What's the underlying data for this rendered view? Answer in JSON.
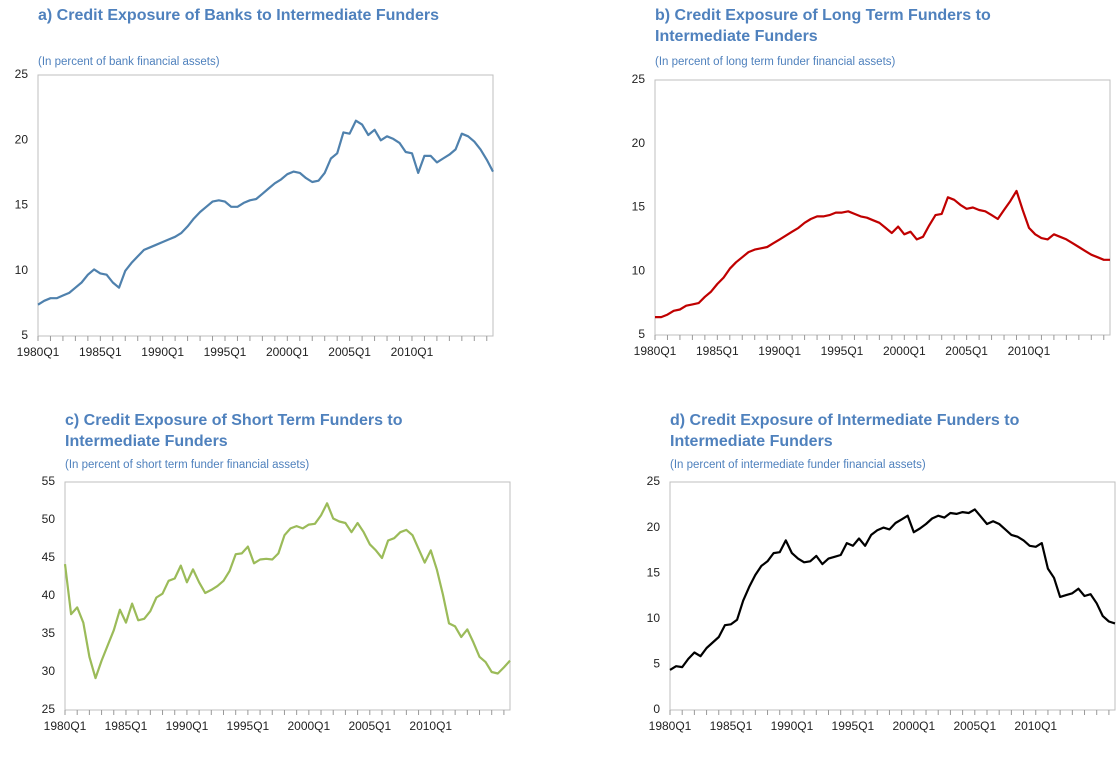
{
  "chart_data": [
    {
      "type": "line",
      "title": "a) Credit Exposure of Banks to Intermediate Funders",
      "subtitle": "(In percent of bank financial assets)",
      "color": "#4f81ad",
      "categories": [
        "1980Q1",
        null,
        null,
        null,
        null,
        null,
        null,
        null,
        null,
        null,
        "1985Q1",
        null,
        null,
        null,
        null,
        null,
        null,
        null,
        null,
        null,
        "1990Q1",
        null,
        null,
        null,
        null,
        null,
        null,
        null,
        null,
        null,
        "1995Q1",
        null,
        null,
        null,
        null,
        null,
        null,
        null,
        null,
        null,
        "2000Q1",
        null,
        null,
        null,
        null,
        null,
        null,
        null,
        null,
        null,
        "2005Q1",
        null,
        null,
        null,
        null,
        null,
        null,
        null,
        null,
        null,
        "2010Q1",
        null,
        null,
        null,
        null,
        null,
        null,
        null,
        null,
        null,
        null,
        null,
        null,
        null
      ],
      "values": [
        7.4,
        7.7,
        7.9,
        7.9,
        8.1,
        8.3,
        8.7,
        9.1,
        9.7,
        10.1,
        9.8,
        9.7,
        9.1,
        8.7,
        10.0,
        10.6,
        11.1,
        11.6,
        11.8,
        12.0,
        12.2,
        12.4,
        12.6,
        12.9,
        13.4,
        14.0,
        14.5,
        14.9,
        15.3,
        15.4,
        15.3,
        14.9,
        14.9,
        15.2,
        15.4,
        15.5,
        15.9,
        16.3,
        16.7,
        17.0,
        17.4,
        17.6,
        17.5,
        17.1,
        16.8,
        16.9,
        17.5,
        18.6,
        19.0,
        20.6,
        20.5,
        21.5,
        21.2,
        20.4,
        20.8,
        20.0,
        20.3,
        20.1,
        19.8,
        19.1,
        19.0,
        17.5,
        18.8,
        18.8,
        18.3,
        18.6,
        18.9,
        19.3,
        20.5,
        20.3,
        19.9,
        19.3,
        18.5,
        17.6
      ],
      "ylim": [
        5,
        25
      ],
      "yticks": [
        5,
        10,
        15,
        20,
        25
      ]
    },
    {
      "type": "line",
      "title": "b) Credit Exposure of Long Term Funders to Intermediate Funders",
      "subtitle": "(In percent of long term funder financial assets)",
      "color": "#c00000",
      "categories": [
        "1980Q1",
        null,
        null,
        null,
        null,
        null,
        null,
        null,
        null,
        null,
        "1985Q1",
        null,
        null,
        null,
        null,
        null,
        null,
        null,
        null,
        null,
        "1990Q1",
        null,
        null,
        null,
        null,
        null,
        null,
        null,
        null,
        null,
        "1995Q1",
        null,
        null,
        null,
        null,
        null,
        null,
        null,
        null,
        null,
        "2000Q1",
        null,
        null,
        null,
        null,
        null,
        null,
        null,
        null,
        null,
        "2005Q1",
        null,
        null,
        null,
        null,
        null,
        null,
        null,
        null,
        null,
        "2010Q1",
        null,
        null,
        null,
        null,
        null,
        null,
        null,
        null,
        null,
        null,
        null,
        null,
        null
      ],
      "values": [
        6.4,
        6.4,
        6.6,
        6.9,
        7.0,
        7.3,
        7.4,
        7.5,
        8.0,
        8.4,
        9.0,
        9.5,
        10.2,
        10.7,
        11.1,
        11.5,
        11.7,
        11.8,
        11.9,
        12.2,
        12.5,
        12.8,
        13.1,
        13.4,
        13.8,
        14.1,
        14.3,
        14.3,
        14.4,
        14.6,
        14.6,
        14.7,
        14.5,
        14.3,
        14.2,
        14.0,
        13.8,
        13.4,
        13.0,
        13.5,
        12.9,
        13.1,
        12.5,
        12.7,
        13.6,
        14.4,
        14.5,
        15.8,
        15.6,
        15.2,
        14.9,
        15.0,
        14.8,
        14.7,
        14.4,
        14.1,
        14.8,
        15.5,
        16.3,
        14.8,
        13.4,
        12.9,
        12.6,
        12.5,
        12.9,
        12.7,
        12.5,
        12.2,
        11.9,
        11.6,
        11.3,
        11.1,
        10.9,
        10.9
      ],
      "ylim": [
        5,
        25
      ],
      "yticks": [
        5,
        10,
        15,
        20,
        25
      ]
    },
    {
      "type": "line",
      "title": "c) Credit Exposure of Short Term Funders to Intermediate Funders",
      "subtitle": "(In percent of short term funder financial assets)",
      "color": "#9bbb59",
      "categories": [
        "1980Q1",
        null,
        null,
        null,
        null,
        null,
        null,
        null,
        null,
        null,
        "1985Q1",
        null,
        null,
        null,
        null,
        null,
        null,
        null,
        null,
        null,
        "1990Q1",
        null,
        null,
        null,
        null,
        null,
        null,
        null,
        null,
        null,
        "1995Q1",
        null,
        null,
        null,
        null,
        null,
        null,
        null,
        null,
        null,
        "2000Q1",
        null,
        null,
        null,
        null,
        null,
        null,
        null,
        null,
        null,
        "2005Q1",
        null,
        null,
        null,
        null,
        null,
        null,
        null,
        null,
        null,
        "2010Q1",
        null,
        null,
        null,
        null,
        null,
        null,
        null,
        null,
        null,
        null,
        null,
        null,
        null
      ],
      "values": [
        44.2,
        37.6,
        38.5,
        36.5,
        32.0,
        29.2,
        31.5,
        33.5,
        35.5,
        38.2,
        36.5,
        39.0,
        36.8,
        37.0,
        38.0,
        39.8,
        40.3,
        42.0,
        42.3,
        44.0,
        41.8,
        43.5,
        41.8,
        40.4,
        40.8,
        41.3,
        42.0,
        43.3,
        45.5,
        45.6,
        46.5,
        44.3,
        44.8,
        44.9,
        44.8,
        45.6,
        48.0,
        48.9,
        49.2,
        48.9,
        49.4,
        49.5,
        50.6,
        52.2,
        50.2,
        49.8,
        49.6,
        48.4,
        49.6,
        48.4,
        46.8,
        46.0,
        45.0,
        47.3,
        47.6,
        48.4,
        48.7,
        48.0,
        46.2,
        44.4,
        46.0,
        43.5,
        40.2,
        36.4,
        36.0,
        34.6,
        35.6,
        33.9,
        32.0,
        31.3,
        30.0,
        29.8,
        30.6,
        31.5
      ],
      "ylim": [
        25,
        55
      ],
      "yticks": [
        25,
        30,
        35,
        40,
        45,
        50,
        55
      ]
    },
    {
      "type": "line",
      "title": "d) Credit Exposure of Intermediate Funders to Intermediate Funders",
      "subtitle": "(In percent of intermediate funder financial assets)",
      "color": "#000000",
      "categories": [
        "1980Q1",
        null,
        null,
        null,
        null,
        null,
        null,
        null,
        null,
        null,
        "1985Q1",
        null,
        null,
        null,
        null,
        null,
        null,
        null,
        null,
        null,
        "1990Q1",
        null,
        null,
        null,
        null,
        null,
        null,
        null,
        null,
        null,
        "1995Q1",
        null,
        null,
        null,
        null,
        null,
        null,
        null,
        null,
        null,
        "2000Q1",
        null,
        null,
        null,
        null,
        null,
        null,
        null,
        null,
        null,
        "2005Q1",
        null,
        null,
        null,
        null,
        null,
        null,
        null,
        null,
        null,
        "2010Q1",
        null,
        null,
        null,
        null,
        null,
        null,
        null,
        null,
        null,
        null,
        null,
        null,
        null
      ],
      "values": [
        4.4,
        4.8,
        4.7,
        5.6,
        6.3,
        5.9,
        6.8,
        7.4,
        8.0,
        9.3,
        9.4,
        9.9,
        12.0,
        13.5,
        14.8,
        15.8,
        16.3,
        17.2,
        17.3,
        18.6,
        17.2,
        16.6,
        16.2,
        16.3,
        16.9,
        16.0,
        16.6,
        16.8,
        17.0,
        18.3,
        18.0,
        18.8,
        18.0,
        19.2,
        19.7,
        20.0,
        19.8,
        20.5,
        20.9,
        21.3,
        19.5,
        19.9,
        20.4,
        21.0,
        21.3,
        21.1,
        21.6,
        21.5,
        21.7,
        21.6,
        22.0,
        21.2,
        20.4,
        20.7,
        20.4,
        19.8,
        19.2,
        19.0,
        18.6,
        18.0,
        17.9,
        18.3,
        15.5,
        14.5,
        12.4,
        12.6,
        12.8,
        13.3,
        12.5,
        12.7,
        11.7,
        10.3,
        9.7,
        9.5
      ],
      "ylim": [
        0,
        25
      ],
      "yticks": [
        0,
        5,
        10,
        15,
        20,
        25
      ]
    }
  ]
}
